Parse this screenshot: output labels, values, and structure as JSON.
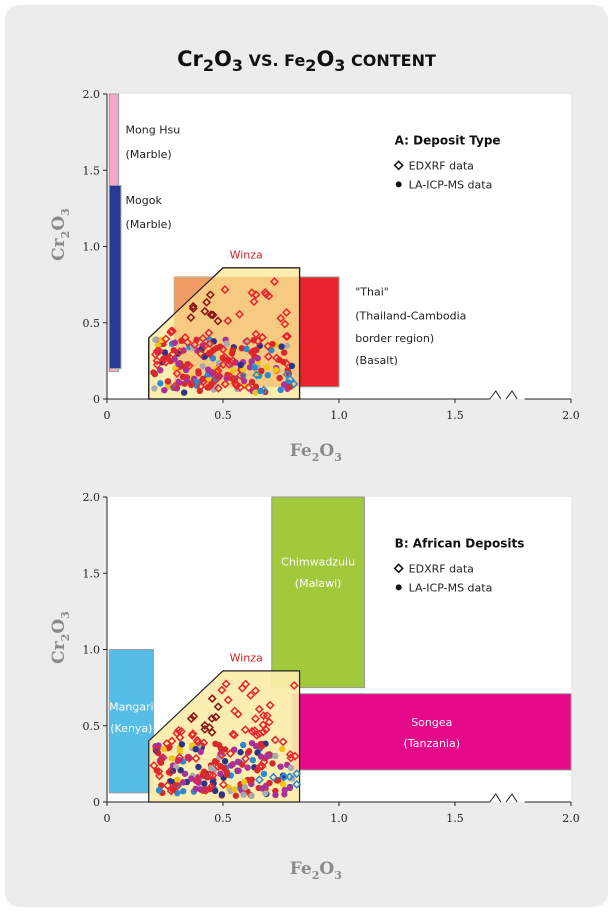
{
  "page": {
    "title": {
      "pre": "Cr",
      "sub1": "2",
      "mid": "O",
      "sub2": "3",
      "vs": " VS. Fe",
      "sub3": "2",
      "o2": "O",
      "sub4": "3",
      "tail": " CONTENT"
    }
  },
  "colors": {
    "winza_fill": "#fcecaa",
    "winza_inner": "#f6c478",
    "thai": "#e8242c",
    "thai_light": "#f4b27c",
    "mong_hsu": "#f5a8c8",
    "mogok": "#2a3896",
    "chimwadzulu": "#a2c83c",
    "songea": "#e5098a",
    "mangari": "#55bde6",
    "edxrf": "#e8242c",
    "edxrf_dark": "#8a1414",
    "la_red": "#d42a2a",
    "la_purple": "#a8329a",
    "la_blue": "#2a8ad0",
    "la_gray": "#aaaaaa",
    "la_yellow": "#f2c418",
    "la_navy": "#2a3484"
  },
  "chart_data": [
    {
      "type": "scatter",
      "title": "A: Deposit Type",
      "xlabel": "Fe2O3",
      "ylabel": "Cr2O3",
      "xlim": [
        0,
        2.0
      ],
      "ylim": [
        0,
        2.0
      ],
      "xticks": [
        "0",
        "0.5",
        "1.0",
        "1.5",
        "2.0"
      ],
      "yticks": [
        "0",
        "0.5",
        "1.0",
        "1.5",
        "2.0"
      ],
      "axis_break": "x between 1.65 and 1.8",
      "legend": [
        "EDXRF data",
        "LA-ICP-MS data"
      ],
      "legend_position": "top-right",
      "regions": [
        {
          "name": "Mong Hsu",
          "subtitle": "(Marble)",
          "x": [
            0.01,
            0.05
          ],
          "y": [
            0.18,
            2.0
          ]
        },
        {
          "name": "Mogok",
          "subtitle": "(Marble)",
          "x": [
            0.01,
            0.06
          ],
          "y": [
            0.2,
            1.4
          ]
        },
        {
          "name": "\"Thai\"",
          "subtitle": "(Thailand-Cambodia border region) (Basalt)",
          "subtitle_lines": [
            "(Thailand-Cambodia",
            "border region)",
            "(Basalt)"
          ],
          "x": [
            0.29,
            1.0
          ],
          "y": [
            0.08,
            0.8
          ]
        },
        {
          "name": "Winza",
          "polygon": [
            [
              0.18,
              0
            ],
            [
              0.83,
              0
            ],
            [
              0.83,
              0.86
            ],
            [
              0.5,
              0.86
            ],
            [
              0.18,
              0.4
            ]
          ]
        }
      ]
    },
    {
      "type": "scatter",
      "title": "B: African Deposits",
      "xlabel": "Fe2O3",
      "ylabel": "Cr2O3",
      "xlim": [
        0,
        2.0
      ],
      "ylim": [
        0,
        2.0
      ],
      "xticks": [
        "0",
        "0.5",
        "1.0",
        "1.5",
        "2.0"
      ],
      "yticks": [
        "0",
        "0.5",
        "1.0",
        "1.5",
        "2.0"
      ],
      "axis_break": "x between 1.65 and 1.8",
      "legend": [
        "EDXRF data",
        "LA-ICP-MS data"
      ],
      "legend_position": "top-right",
      "regions": [
        {
          "name": "Mangari",
          "subtitle": "(Kenya)",
          "x": [
            0.01,
            0.2
          ],
          "y": [
            0.06,
            1.0
          ]
        },
        {
          "name": "Chimwadzulu",
          "subtitle": "(Malawi)",
          "x": [
            0.71,
            1.11
          ],
          "y": [
            0.75,
            2.0
          ]
        },
        {
          "name": "Songea",
          "subtitle": "(Tanzania)",
          "x": [
            0.8,
            2.0
          ],
          "y": [
            0.21,
            0.71
          ]
        },
        {
          "name": "Winza",
          "polygon": [
            [
              0.18,
              0
            ],
            [
              0.83,
              0
            ],
            [
              0.83,
              0.86
            ],
            [
              0.5,
              0.86
            ],
            [
              0.18,
              0.4
            ]
          ]
        }
      ]
    }
  ]
}
